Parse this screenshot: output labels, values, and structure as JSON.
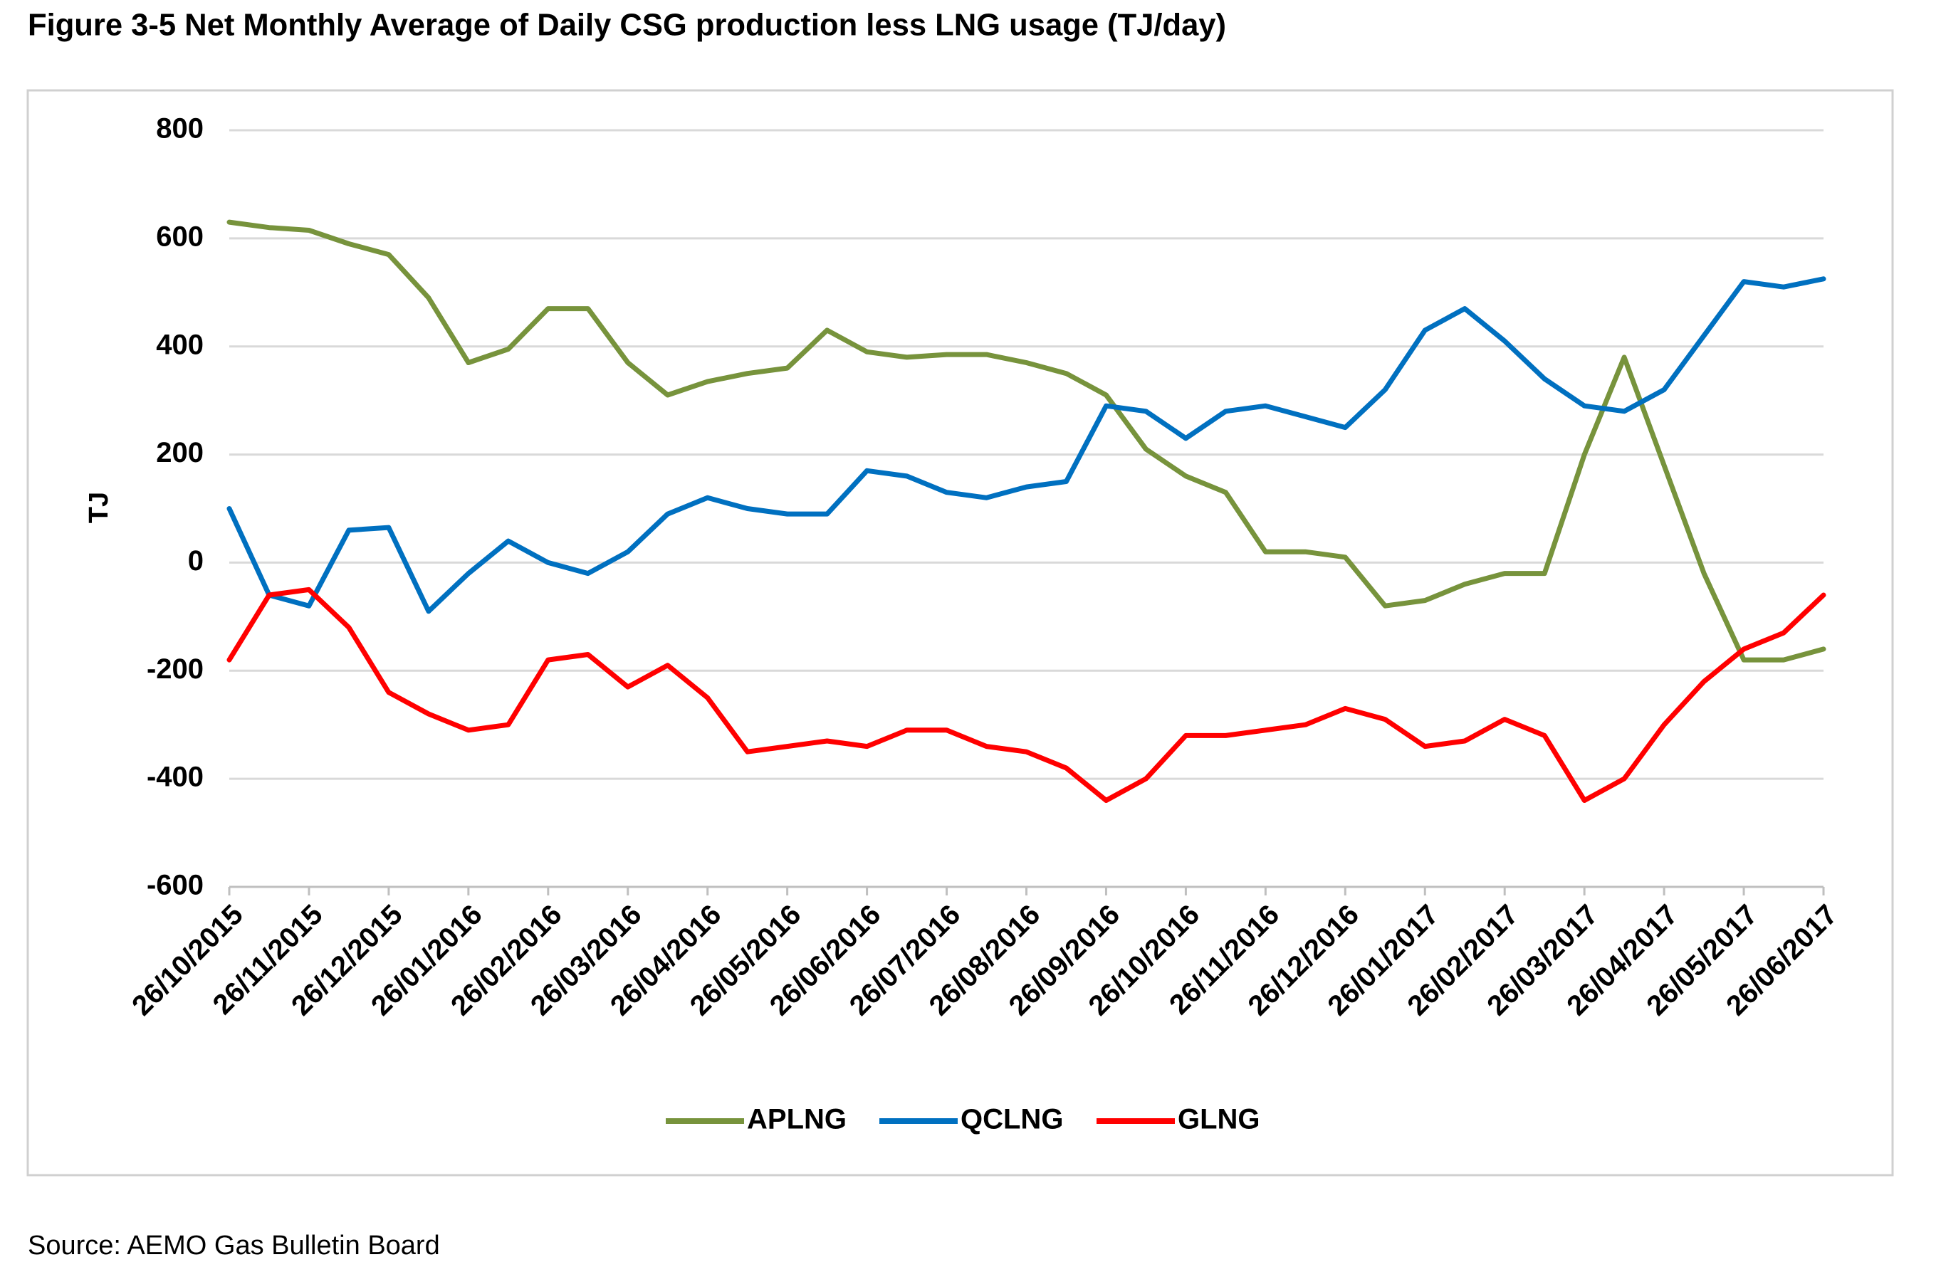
{
  "chart_data": {
    "type": "line",
    "title": "Figure 3-5 Net Monthly Average of Daily CSG production less LNG usage (TJ/day)",
    "y_label": "TJ",
    "source": "Source: AEMO Gas Bulletin Board",
    "categories": [
      "26/10/2015",
      null,
      "26/11/2015",
      null,
      "26/12/2015",
      null,
      "26/01/2016",
      null,
      "26/02/2016",
      null,
      "26/03/2016",
      null,
      "26/04/2016",
      null,
      "26/05/2016",
      null,
      "26/06/2016",
      null,
      "26/07/2016",
      null,
      "26/08/2016",
      null,
      "26/09/2016",
      null,
      "26/10/2016",
      null,
      "26/11/2016",
      null,
      "26/12/2016",
      null,
      "26/01/2017",
      null,
      "26/02/2017",
      null,
      "26/03/2017",
      null,
      "26/04/2017",
      null,
      "26/05/2017",
      null,
      "26/06/2017"
    ],
    "series": [
      {
        "name": "APLNG",
        "color": "#77933c",
        "values": [
          630,
          620,
          615,
          590,
          570,
          490,
          370,
          395,
          470,
          470,
          370,
          310,
          335,
          350,
          360,
          430,
          390,
          380,
          385,
          385,
          370,
          350,
          310,
          210,
          160,
          130,
          20,
          20,
          10,
          -80,
          -70,
          -40,
          -20,
          -20,
          200,
          380,
          180,
          -20,
          -180,
          -180,
          -160
        ]
      },
      {
        "name": "QCLNG",
        "color": "#0070c0",
        "values": [
          100,
          -60,
          -80,
          60,
          65,
          -90,
          -20,
          40,
          0,
          -20,
          20,
          90,
          120,
          100,
          90,
          90,
          170,
          160,
          130,
          120,
          140,
          150,
          290,
          280,
          230,
          280,
          290,
          270,
          250,
          320,
          430,
          470,
          410,
          340,
          290,
          280,
          320,
          420,
          520,
          510,
          525
        ]
      },
      {
        "name": "GLNG",
        "color": "#ff0000",
        "values": [
          -180,
          -60,
          -50,
          -120,
          -240,
          -280,
          -310,
          -300,
          -180,
          -170,
          -230,
          -190,
          -250,
          -350,
          -340,
          -330,
          -340,
          -310,
          -310,
          -340,
          -350,
          -380,
          -440,
          -400,
          -320,
          -320,
          -310,
          -300,
          -270,
          -290,
          -340,
          -330,
          -290,
          -320,
          -440,
          -400,
          -300,
          -220,
          -160,
          -130,
          -60
        ]
      }
    ],
    "ylim": [
      -600,
      800
    ],
    "yticks": [
      -600,
      -400,
      -200,
      0,
      200,
      400,
      600,
      800
    ],
    "grid": true,
    "legend": "bottom"
  }
}
